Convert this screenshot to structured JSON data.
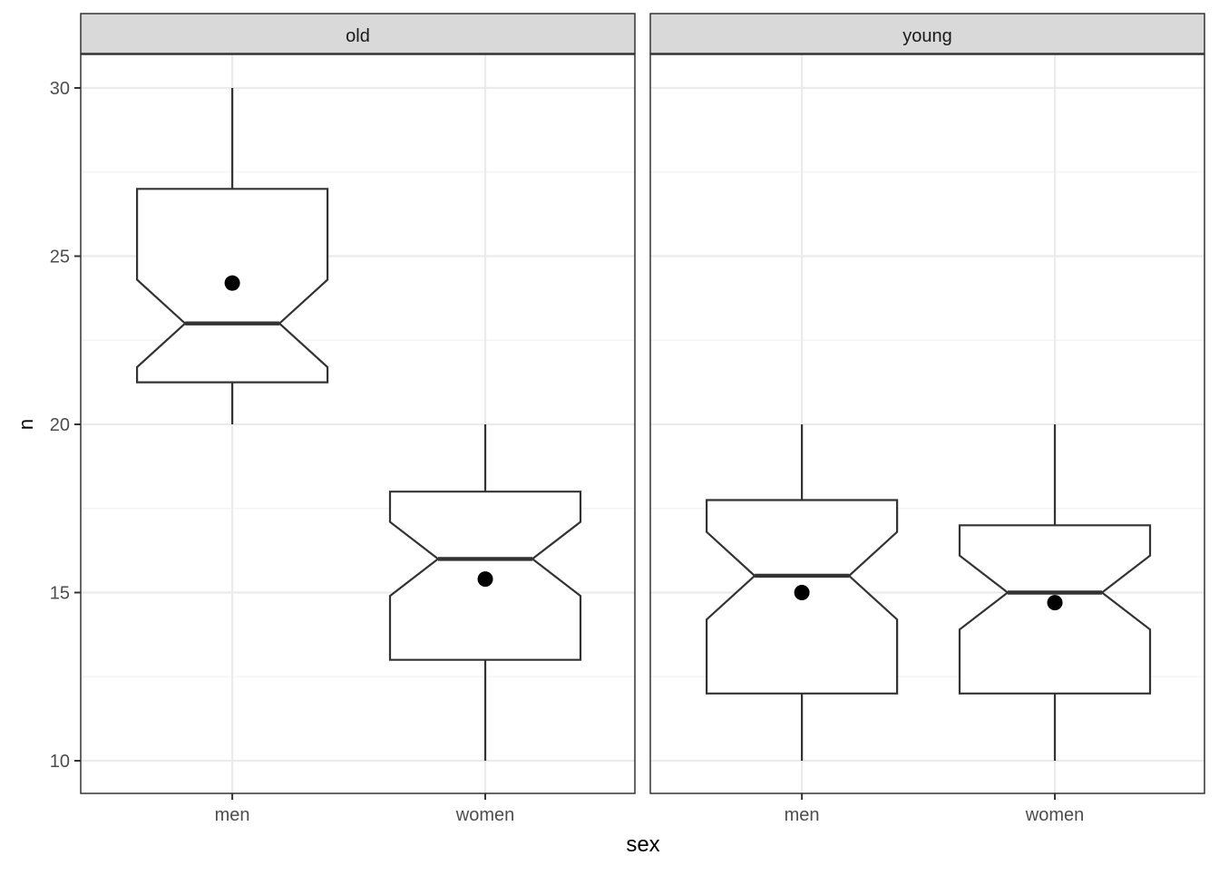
{
  "chart_data": {
    "type": "boxplot",
    "notched": true,
    "xlabel": "sex",
    "ylabel": "n",
    "categories": [
      "men",
      "women"
    ],
    "ylim": [
      9,
      31
    ],
    "y_ticks": [
      10,
      15,
      20,
      25,
      30
    ],
    "y_tick_labels": [
      "10",
      "15",
      "20",
      "25",
      "30"
    ],
    "grid": true,
    "legend": "none",
    "colors": {
      "box_fill": "#ffffff",
      "box_line": "#333333",
      "strip_fill": "#d9d9d9",
      "strip_border": "#333333",
      "grid_major": "#ebebeb",
      "grid_minor": "#f3f3f3",
      "mean_point": "#000000"
    },
    "panels": [
      {
        "facet": "old",
        "boxes": [
          {
            "category": "men",
            "whisker_low": 20,
            "q1": 21.25,
            "median": 23,
            "q3": 27,
            "whisker_high": 30,
            "notch_low": 21.7,
            "notch_high": 24.3,
            "mean": 24.2
          },
          {
            "category": "women",
            "whisker_low": 10,
            "q1": 13,
            "median": 16,
            "q3": 18,
            "whisker_high": 20,
            "notch_low": 14.9,
            "notch_high": 17.1,
            "mean": 15.4
          }
        ]
      },
      {
        "facet": "young",
        "boxes": [
          {
            "category": "men",
            "whisker_low": 10,
            "q1": 12,
            "median": 15.5,
            "q3": 17.75,
            "whisker_high": 20,
            "notch_low": 14.2,
            "notch_high": 16.8,
            "mean": 15.0
          },
          {
            "category": "women",
            "whisker_low": 10,
            "q1": 12,
            "median": 15,
            "q3": 17,
            "whisker_high": 20,
            "notch_low": 13.9,
            "notch_high": 16.1,
            "mean": 14.7
          }
        ]
      }
    ]
  }
}
